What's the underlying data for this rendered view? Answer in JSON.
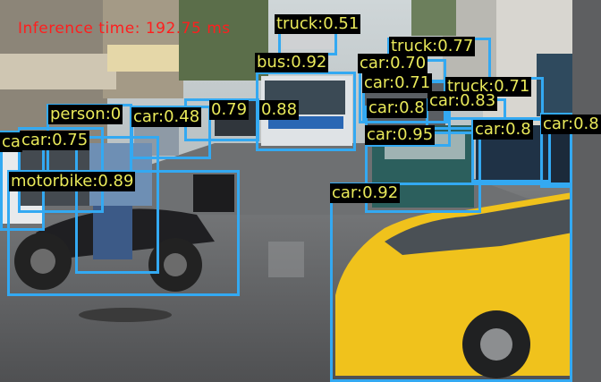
{
  "overlay": {
    "inference_time": "Inference time: 192.75 ms",
    "text_color": "#ff1e1e"
  },
  "box_color": "#33a9f2",
  "label_text_color": "#e9e95a",
  "detections": [
    {
      "label": "truck:0.51"
    },
    {
      "label": "truck:0.77"
    },
    {
      "label": "bus:0.92"
    },
    {
      "label": "car:0.70"
    },
    {
      "label": "car:0.71"
    },
    {
      "label": "truck:0.71"
    },
    {
      "label": "car:0.8"
    },
    {
      "label": "car:0.83"
    },
    {
      "label": "car:0.8"
    },
    {
      "label": "car:0.95"
    },
    {
      "label": "car:0.8"
    },
    {
      "label": "car:0.92"
    },
    {
      "label": "person:0"
    },
    {
      "label": "car:0.48"
    },
    {
      "label": "0.79"
    },
    {
      "label": "0.88"
    },
    {
      "label": "car:0.75"
    },
    {
      "label": "motorbike:0.89"
    },
    {
      "label": "ca"
    }
  ]
}
